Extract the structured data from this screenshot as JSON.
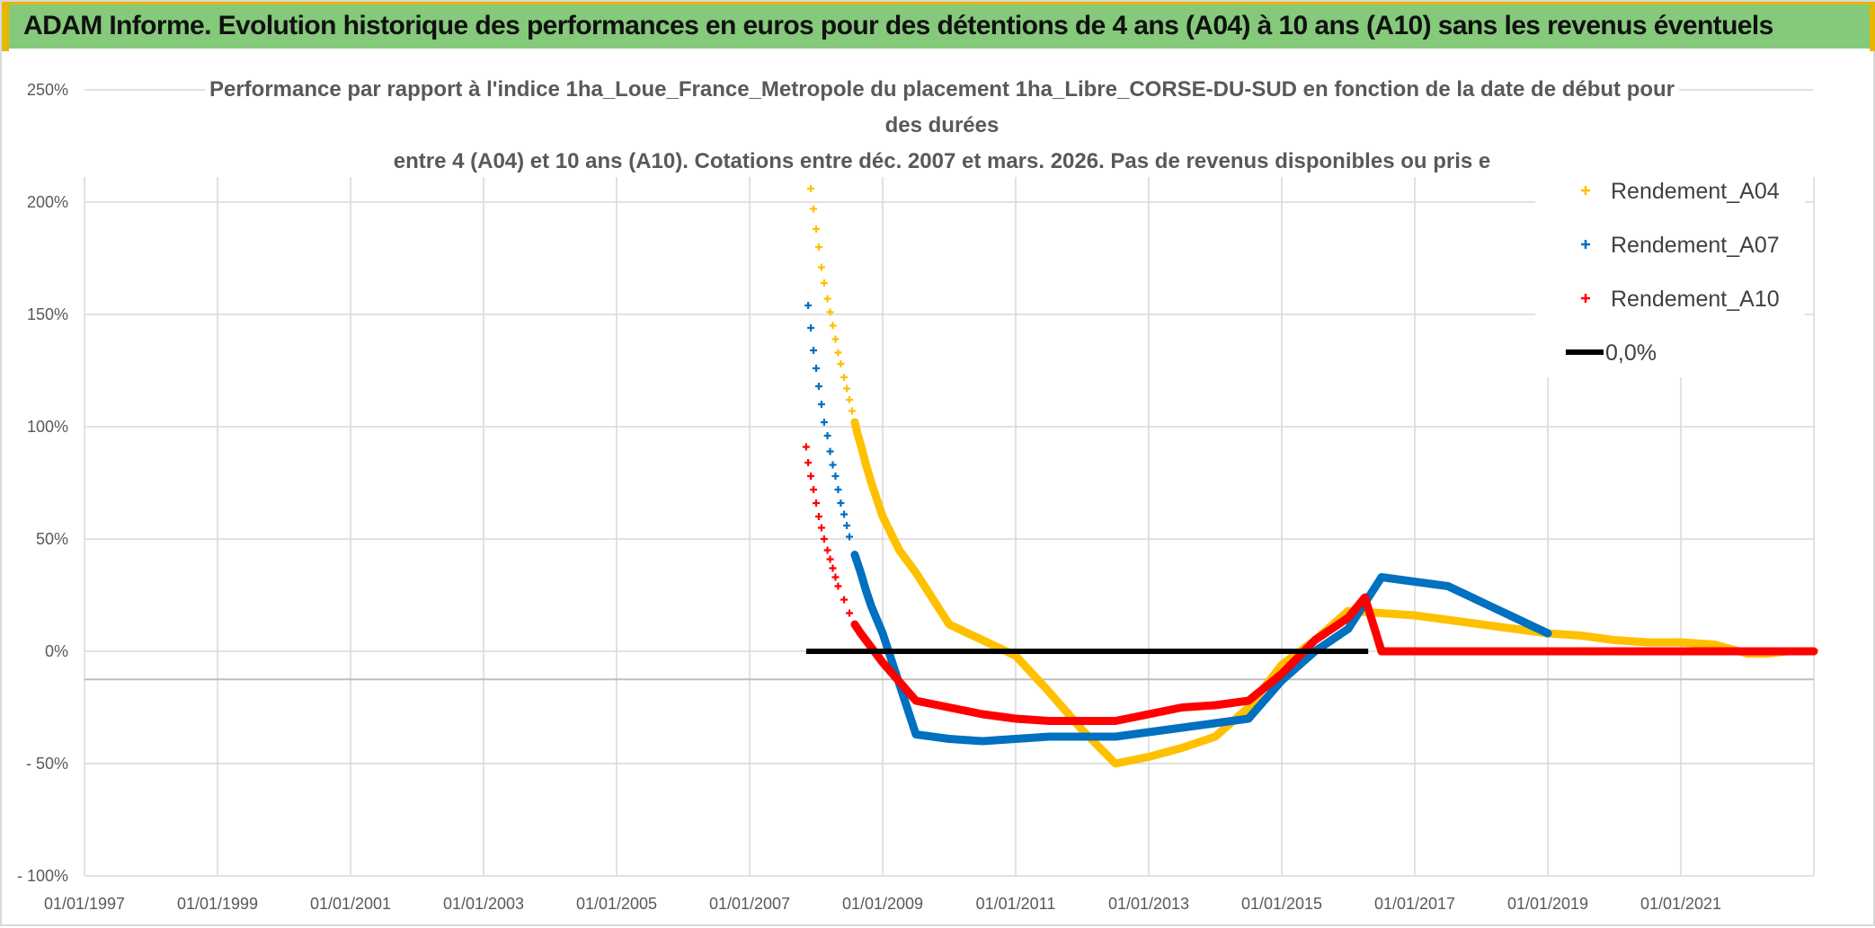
{
  "banner": {
    "title": "ADAM Informe. Evolution historique des performances en euros pour des détentions de 4 ans (A04) à 10 ans (A10) sans les revenus éventuels"
  },
  "chart_data": {
    "type": "line",
    "title_lines": [
      "Performance par rapport à l'indice 1ha_Loue_France_Metropole  du placement 1ha_Libre_CORSE-DU-SUD en fonction de la date de début pour",
      "des durées",
      "entre 4 (A04) et 10 ans (A10). Cotations entre déc. 2007 et mars. 2026. Pas de revenus disponibles ou pris e"
    ],
    "xlabel": "",
    "ylabel": "",
    "x_range": [
      1997.0,
      2023.0
    ],
    "x_ticks": [
      1997,
      1999,
      2001,
      2003,
      2005,
      2007,
      2009,
      2011,
      2013,
      2015,
      2017,
      2019,
      2021
    ],
    "x_tick_labels": [
      "01/01/1997",
      "01/01/1999",
      "01/01/2001",
      "01/01/2003",
      "01/01/2005",
      "01/01/2007",
      "01/01/2009",
      "01/01/2011",
      "01/01/2013",
      "01/01/2015",
      "01/01/2017",
      "01/01/2019",
      "01/01/2021"
    ],
    "ylim": [
      -100,
      250
    ],
    "y_ticks": [
      250,
      200,
      150,
      100,
      50,
      0,
      -50,
      -100
    ],
    "y_tick_labels": [
      "250%",
      "200%",
      "150%",
      "100%",
      "50%",
      "0%",
      "- 50%",
      "- 100%"
    ],
    "grid": true,
    "legend_position": "top-right",
    "series": [
      {
        "name": "Rendement_A04",
        "color": "#ffc000",
        "marker": "+",
        "x": [
          2007.92,
          2007.96,
          2008.0,
          2008.04,
          2008.08,
          2008.12,
          2008.17,
          2008.21,
          2008.25,
          2008.29,
          2008.33,
          2008.37,
          2008.42,
          2008.46,
          2008.5,
          2008.54,
          2008.58,
          2008.62,
          2008.67,
          2008.75,
          2008.83,
          2008.92,
          2009.0,
          2009.25,
          2009.5,
          2010.0,
          2010.5,
          2011.0,
          2011.5,
          2012.0,
          2012.5,
          2013.0,
          2013.5,
          2014.0,
          2014.5,
          2015.0,
          2015.5,
          2016.0,
          2016.5,
          2017.0,
          2017.5,
          2018.0,
          2018.5,
          2019.0,
          2019.5,
          2020.0,
          2020.5,
          2021.0,
          2021.5,
          2022.0,
          2022.3,
          2022.6,
          2023.0
        ],
        "values": [
          206,
          197,
          188,
          180,
          171,
          164,
          157,
          151,
          145,
          139,
          133,
          128,
          122,
          117,
          112,
          107,
          102,
          97,
          92,
          83,
          75,
          67,
          60,
          45,
          35,
          12,
          5,
          -2,
          -18,
          -35,
          -50,
          -47,
          -43,
          -38,
          -25,
          -6,
          5,
          18,
          17,
          16,
          14,
          12,
          10,
          8,
          7,
          5,
          4,
          4,
          3,
          -1,
          -1,
          0,
          0
        ]
      },
      {
        "name": "Rendement_A07",
        "color": "#0070c0",
        "marker": "+",
        "x": [
          2007.88,
          2007.92,
          2007.96,
          2008.0,
          2008.04,
          2008.08,
          2008.12,
          2008.17,
          2008.21,
          2008.25,
          2008.29,
          2008.33,
          2008.37,
          2008.42,
          2008.46,
          2008.5,
          2008.58,
          2008.67,
          2008.75,
          2008.83,
          2009.0,
          2009.5,
          2010.0,
          2010.5,
          2011.0,
          2011.5,
          2012.0,
          2012.5,
          2013.0,
          2013.5,
          2014.0,
          2014.5,
          2015.0,
          2015.5,
          2016.0,
          2016.5,
          2017.0,
          2017.5,
          2018.0,
          2018.5,
          2019.0
        ],
        "values": [
          154,
          144,
          134,
          126,
          118,
          110,
          102,
          96,
          89,
          83,
          78,
          72,
          66,
          61,
          56,
          51,
          43,
          35,
          27,
          20,
          8,
          -37,
          -39,
          -40,
          -39,
          -38,
          -38,
          -38,
          -36,
          -34,
          -32,
          -30,
          -13,
          0,
          10,
          33,
          31,
          29,
          22,
          15,
          8
        ]
      },
      {
        "name": "Rendement_A10",
        "color": "#ff0000",
        "marker": "+",
        "x": [
          2007.85,
          2007.88,
          2007.92,
          2007.96,
          2008.0,
          2008.04,
          2008.08,
          2008.12,
          2008.17,
          2008.21,
          2008.25,
          2008.29,
          2008.33,
          2008.42,
          2008.5,
          2008.58,
          2008.67,
          2009.0,
          2009.5,
          2010.0,
          2010.5,
          2011.0,
          2011.5,
          2012.0,
          2012.5,
          2013.0,
          2013.5,
          2014.0,
          2014.5,
          2015.0,
          2015.5,
          2016.0,
          2016.25,
          2016.5,
          2017.0,
          2017.5,
          2018.0,
          2018.5,
          2019.0,
          2019.5,
          2020.0,
          2020.5,
          2021.0,
          2021.5,
          2022.0,
          2022.5,
          2023.0
        ],
        "values": [
          91,
          84,
          78,
          72,
          66,
          60,
          55,
          50,
          45,
          41,
          37,
          33,
          29,
          23,
          17,
          12,
          8,
          -5,
          -22,
          -25,
          -28,
          -30,
          -31,
          -31,
          -31,
          -28,
          -25,
          -24,
          -22,
          -10,
          5,
          15,
          24,
          0,
          0,
          0,
          0,
          0,
          0,
          0,
          0,
          0,
          0,
          0,
          0,
          0,
          0
        ]
      },
      {
        "name": "0,0%",
        "color": "#000000",
        "marker": "line",
        "x": [
          2007.85,
          2016.3
        ],
        "values": [
          0,
          0
        ]
      }
    ]
  }
}
